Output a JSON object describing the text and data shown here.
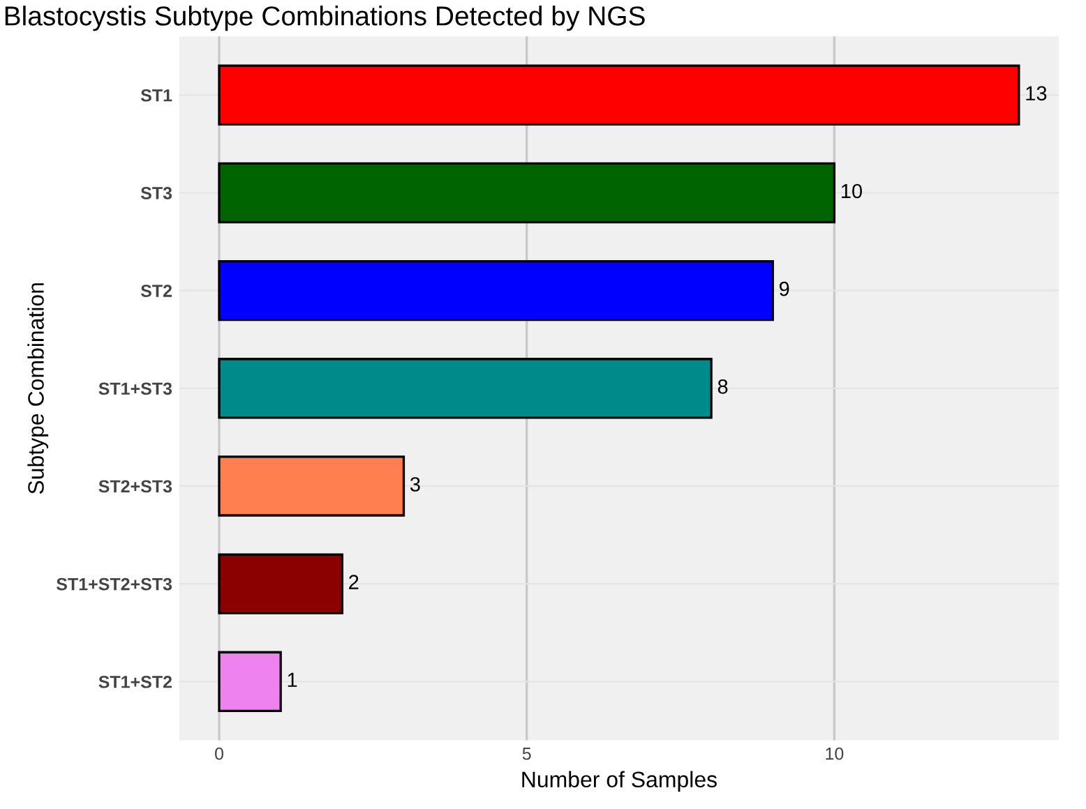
{
  "chart_data": {
    "type": "bar",
    "orientation": "horizontal",
    "title": "Blastocystis Subtype Combinations Detected by NGS",
    "xlabel": "Number of Samples",
    "ylabel": "Subtype Combination",
    "categories": [
      "ST1",
      "ST3",
      "ST2",
      "ST1+ST3",
      "ST2+ST3",
      "ST1+ST2+ST3",
      "ST1+ST2"
    ],
    "values": [
      13,
      10,
      9,
      8,
      3,
      2,
      1
    ],
    "colors": [
      "#ff0000",
      "#006400",
      "#0000ff",
      "#008b8b",
      "#ff7f50",
      "#8b0000",
      "#ee82ee"
    ],
    "xlim": [
      -0.65,
      13.65
    ],
    "xticks": [
      0,
      5,
      10
    ],
    "grid": true,
    "data_labels": true
  }
}
